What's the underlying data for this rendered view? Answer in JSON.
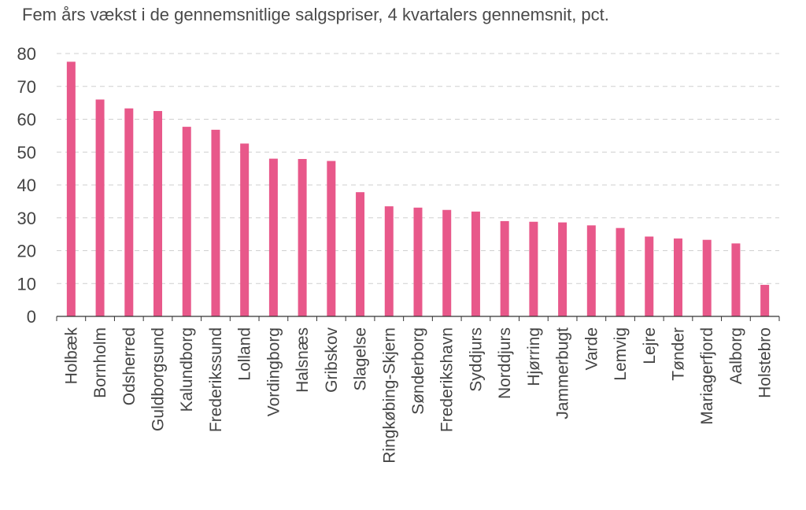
{
  "chart_data": {
    "type": "bar",
    "title": "Fem års vækst i de gennemsnitlige salgspriser, 4 kvartalers gennemsnit, pct.",
    "xlabel": "",
    "ylabel": "",
    "ylim": [
      0,
      80
    ],
    "yticks": [
      0,
      10,
      20,
      30,
      40,
      50,
      60,
      70,
      80
    ],
    "grid": true,
    "legend": "none",
    "bar_color": "#E8588A",
    "categories": [
      "Holbæk",
      "Bornholm",
      "Odsherred",
      "Guldborgsund",
      "Kalundborg",
      "Frederikssund",
      "Lolland",
      "Vordingborg",
      "Halsnæs",
      "Gribskov",
      "Slagelse",
      "Ringkøbing-Skjern",
      "Sønderborg",
      "Frederikshavn",
      "Syddjurs",
      "Norddjurs",
      "Hjørring",
      "Jammerbugt",
      "Varde",
      "Lemvig",
      "Lejre",
      "Tønder",
      "Mariagerfjord",
      "Aalborg",
      "Holstebro"
    ],
    "values": [
      77.5,
      66.0,
      63.3,
      62.5,
      57.7,
      56.8,
      52.6,
      48.0,
      47.9,
      47.3,
      37.8,
      33.5,
      33.1,
      32.4,
      31.9,
      29.0,
      28.8,
      28.6,
      27.7,
      26.9,
      24.3,
      23.7,
      23.3,
      22.2,
      9.6
    ]
  }
}
